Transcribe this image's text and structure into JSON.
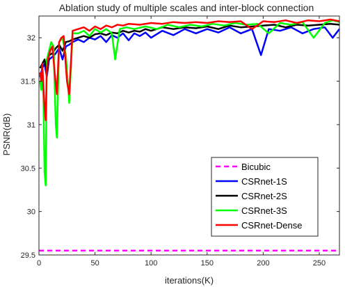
{
  "chart_data": {
    "type": "line",
    "title": "Ablation study of multiple scales and inter-block connection",
    "xlabel": "iterations(K)",
    "ylabel": "PSNR(dB)",
    "xlim": [
      0,
      268
    ],
    "ylim": [
      29.5,
      32.25
    ],
    "xticks": [
      0,
      50,
      100,
      150,
      200,
      250
    ],
    "yticks": [
      29.5,
      30,
      30.5,
      31,
      31.5,
      32
    ],
    "grid": false,
    "legend_position": "bottom-right",
    "series": [
      {
        "name": "Bicubic",
        "color": "#ff00ff",
        "style": "dashed",
        "x": [
          0,
          268
        ],
        "y": [
          29.55,
          29.55
        ]
      },
      {
        "name": "CSRnet-1S",
        "color": "#0000ff",
        "style": "solid",
        "x": [
          1,
          3,
          5,
          7,
          9,
          12,
          15,
          18,
          21,
          24,
          27,
          30,
          35,
          40,
          45,
          50,
          55,
          60,
          65,
          70,
          75,
          80,
          85,
          90,
          95,
          100,
          110,
          120,
          130,
          140,
          150,
          160,
          170,
          180,
          190,
          198,
          205,
          215,
          225,
          235,
          245,
          255,
          262,
          268
        ],
        "y": [
          31.55,
          31.65,
          31.7,
          31.55,
          31.75,
          31.78,
          31.82,
          31.88,
          31.75,
          31.9,
          31.92,
          31.95,
          31.98,
          31.95,
          32.0,
          31.98,
          32.02,
          31.95,
          32.03,
          32.0,
          32.05,
          31.97,
          32.05,
          32.02,
          32.06,
          32.0,
          32.08,
          32.03,
          32.1,
          32.05,
          32.1,
          32.06,
          32.12,
          32.05,
          32.1,
          31.8,
          32.1,
          32.08,
          32.12,
          32.05,
          32.1,
          32.12,
          32.0,
          32.1
        ]
      },
      {
        "name": "CSRnet-2S",
        "color": "#000000",
        "style": "solid",
        "x": [
          1,
          3,
          5,
          7,
          9,
          12,
          15,
          18,
          21,
          24,
          27,
          30,
          35,
          40,
          45,
          50,
          55,
          60,
          65,
          70,
          75,
          80,
          85,
          90,
          95,
          100,
          110,
          120,
          130,
          140,
          150,
          160,
          170,
          180,
          190,
          200,
          210,
          220,
          230,
          240,
          250,
          260,
          268
        ],
        "y": [
          31.65,
          31.7,
          31.75,
          31.6,
          31.8,
          31.82,
          31.88,
          31.92,
          31.85,
          31.95,
          31.96,
          31.98,
          32.0,
          32.02,
          32.0,
          32.04,
          32.05,
          32.03,
          32.06,
          32.05,
          32.08,
          32.06,
          32.08,
          32.07,
          32.1,
          32.08,
          32.12,
          32.1,
          32.12,
          32.11,
          32.13,
          32.1,
          32.14,
          32.12,
          32.13,
          32.14,
          32.15,
          32.12,
          32.15,
          32.14,
          32.15,
          32.16,
          32.15
        ]
      },
      {
        "name": "CSRnet-3S",
        "color": "#00ff00",
        "style": "solid",
        "x": [
          1,
          2,
          3,
          4,
          5,
          6,
          7,
          9,
          11,
          13,
          15,
          16,
          18,
          21,
          24,
          27,
          30,
          35,
          40,
          45,
          50,
          55,
          60,
          65,
          68,
          72,
          78,
          85,
          95,
          105,
          115,
          125,
          135,
          145,
          155,
          165,
          175,
          185,
          195,
          205,
          215,
          225,
          235,
          245,
          255,
          262,
          268
        ],
        "y": [
          31.5,
          31.4,
          31.6,
          31.3,
          30.45,
          30.3,
          31.75,
          31.85,
          31.95,
          31.9,
          31.0,
          30.85,
          31.95,
          32.0,
          31.8,
          31.25,
          32.05,
          32.05,
          32.08,
          32.02,
          32.1,
          32.06,
          32.1,
          32.05,
          31.75,
          32.1,
          32.12,
          32.1,
          32.13,
          32.1,
          32.15,
          32.12,
          32.15,
          32.13,
          32.16,
          32.14,
          32.17,
          32.15,
          32.16,
          32.05,
          32.17,
          32.15,
          32.18,
          32.0,
          32.17,
          32.2,
          32.18
        ]
      },
      {
        "name": "CSRnet-Dense",
        "color": "#ff0000",
        "style": "solid",
        "x": [
          1,
          2,
          3,
          4,
          5,
          6,
          7,
          8,
          10,
          12,
          14,
          16,
          18,
          20,
          22,
          25,
          27,
          30,
          35,
          40,
          45,
          50,
          55,
          60,
          65,
          70,
          75,
          80,
          90,
          100,
          110,
          120,
          130,
          140,
          150,
          160,
          170,
          180,
          190,
          200,
          210,
          220,
          230,
          240,
          250,
          260,
          268
        ],
        "y": [
          31.6,
          31.5,
          31.7,
          31.45,
          31.2,
          31.05,
          31.65,
          31.75,
          31.85,
          31.9,
          31.6,
          31.35,
          31.95,
          32.0,
          32.02,
          31.5,
          31.35,
          32.08,
          32.1,
          32.12,
          32.08,
          32.13,
          32.1,
          32.14,
          32.12,
          32.15,
          32.14,
          32.16,
          32.15,
          32.17,
          32.16,
          32.18,
          32.17,
          32.18,
          32.17,
          32.19,
          32.18,
          32.19,
          32.1,
          32.19,
          32.18,
          32.2,
          32.17,
          32.2,
          32.19,
          32.21,
          32.19
        ]
      }
    ]
  }
}
